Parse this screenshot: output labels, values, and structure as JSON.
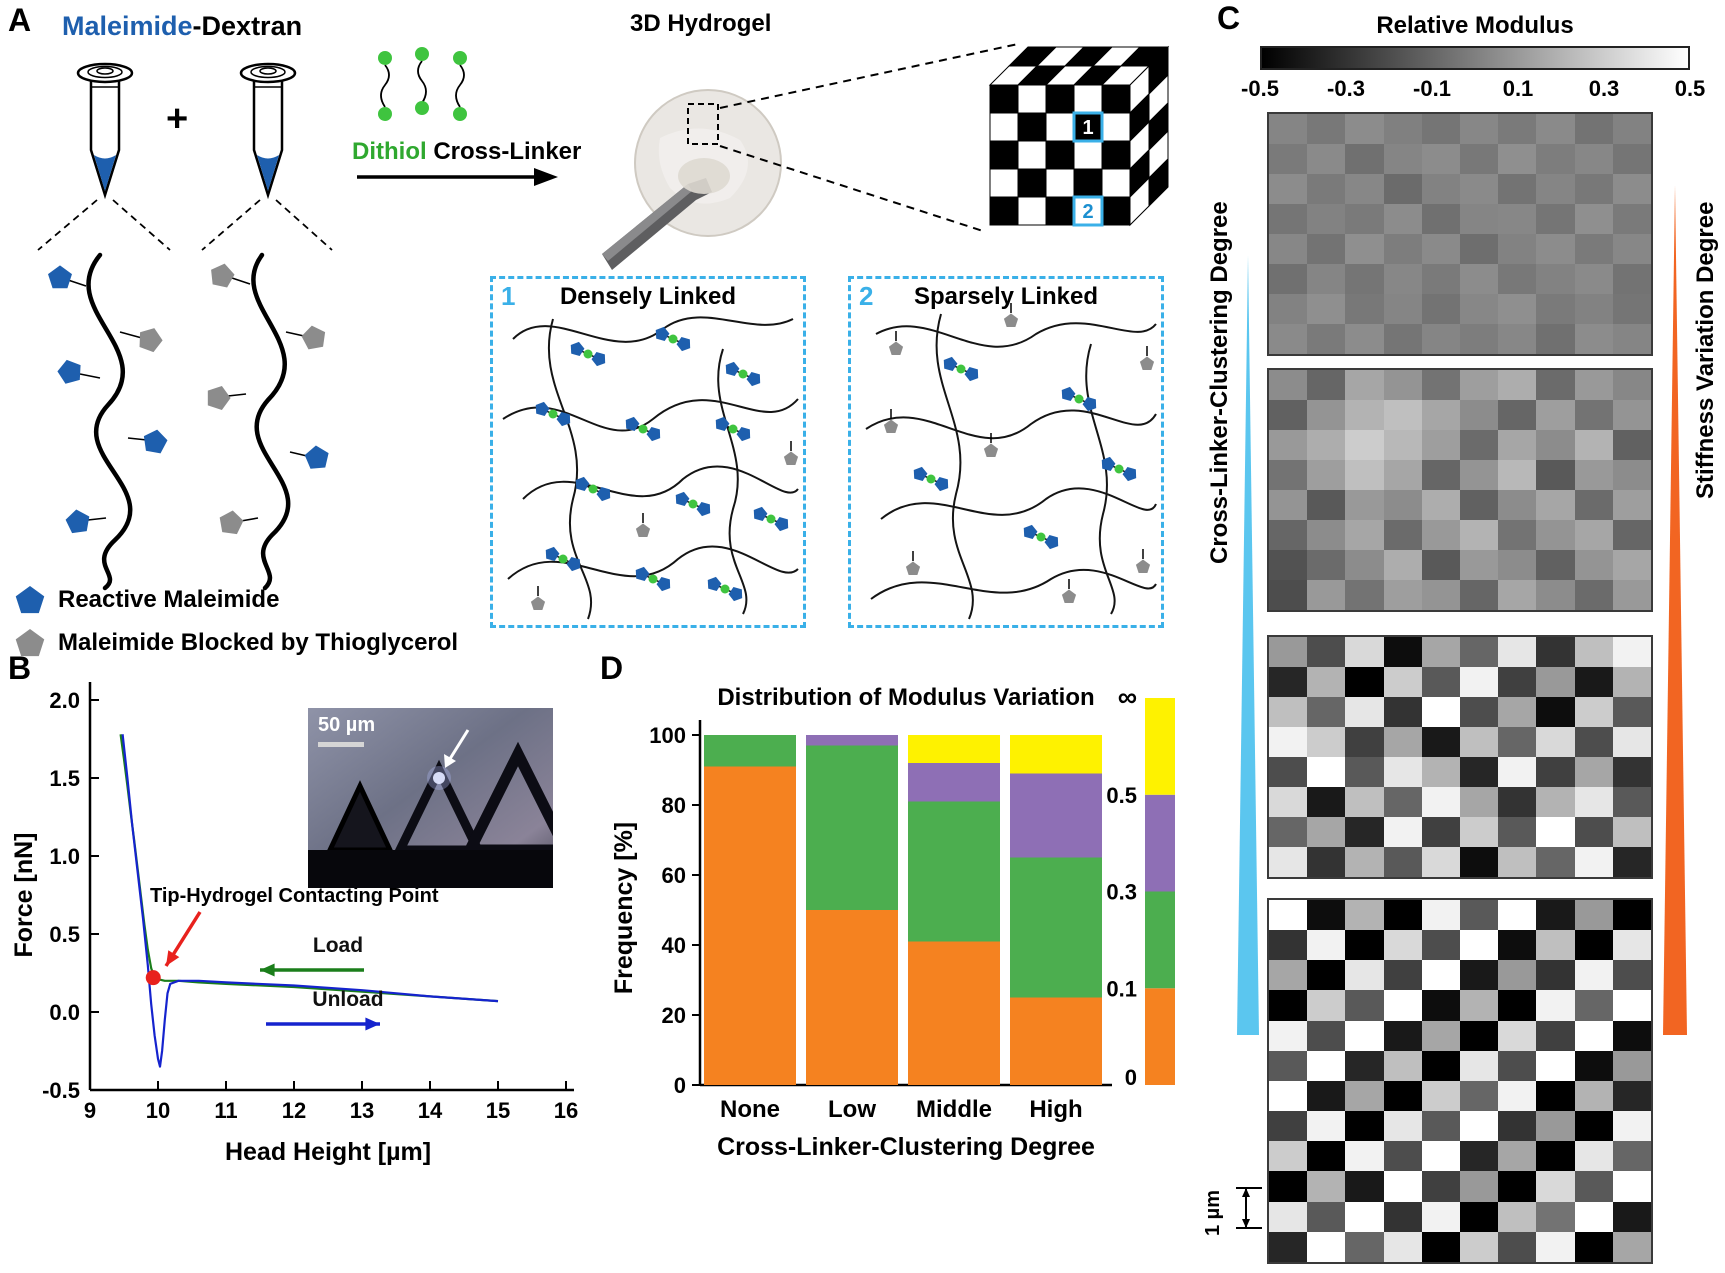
{
  "labels": {
    "a": "A",
    "b": "B",
    "c": "C",
    "d": "D"
  },
  "panel_a": {
    "title_blue": "Maleimide",
    "title_rest": "-Dextran",
    "plus": "+",
    "linker_green": "Dithiol",
    "linker_rest": " Cross-Linker",
    "hydrogel_label": "3D Hydrogel",
    "region1": {
      "number": "1",
      "title": "Densely Linked"
    },
    "region2": {
      "number": "2",
      "title": "Sparsely Linked"
    },
    "legend": [
      {
        "label": "Reactive Maleimide",
        "color": "#1E5FAE"
      },
      {
        "label": "Maleimide Blocked by Thioglycerol",
        "color": "#8C8C8C"
      }
    ],
    "accent_blue": "#3AB0E8",
    "green": "#3FC43F"
  },
  "panel_b": {
    "inset_scale": "50 µm"
  },
  "panel_c": {
    "colorbar_title": "Relative Modulus",
    "colorbar_ticks": [
      "-0.5",
      "-0.3",
      "-0.1",
      "0.1",
      "0.3",
      "0.5"
    ],
    "left_label": "Cross-Linker-Clustering Degree",
    "right_label": "Stiffness Variation Degree",
    "scale_label": "1 µm",
    "left_wedge_color": "#5BC6EF",
    "right_wedge_color": "#F26522"
  },
  "chart_data": [
    {
      "name": "afm_force_curve",
      "type": "line",
      "xlabel": "Head Height [µm]",
      "ylabel": "Force [nN]",
      "xlim": [
        9,
        16
      ],
      "ylim": [
        -0.5,
        2.0
      ],
      "xticks": [
        "9",
        "10",
        "11",
        "12",
        "13",
        "14",
        "15",
        "16"
      ],
      "yticks": [
        "2.0",
        "1.5",
        "1.0",
        "0.5",
        "0.0",
        "-0.5"
      ],
      "series": [
        {
          "name": "Load",
          "color": "#1B7E1B",
          "x": [
            9.45,
            9.5,
            9.55,
            9.6,
            9.65,
            9.7,
            9.75,
            9.8,
            9.85,
            9.9,
            9.95,
            10.0,
            10.1,
            10.3,
            10.6,
            11.0,
            12.0,
            13.0,
            14.0,
            15.0
          ],
          "y": [
            1.78,
            1.62,
            1.45,
            1.27,
            1.1,
            0.92,
            0.74,
            0.56,
            0.4,
            0.28,
            0.22,
            0.21,
            0.2,
            0.2,
            0.19,
            0.18,
            0.16,
            0.13,
            0.1,
            0.07
          ]
        },
        {
          "name": "Unload",
          "color": "#1523CE",
          "x": [
            9.48,
            9.55,
            9.62,
            9.7,
            9.78,
            9.85,
            9.9,
            9.95,
            10.0,
            10.03,
            10.06,
            10.1,
            10.14,
            10.18,
            10.3,
            10.6,
            11.0,
            12.0,
            13.0,
            14.0,
            15.0
          ],
          "y": [
            1.78,
            1.5,
            1.2,
            0.9,
            0.6,
            0.3,
            0.05,
            -0.15,
            -0.3,
            -0.35,
            -0.25,
            -0.05,
            0.12,
            0.18,
            0.2,
            0.2,
            0.19,
            0.17,
            0.14,
            0.1,
            0.07
          ]
        }
      ],
      "contact_point": [
        9.93,
        0.22
      ],
      "labels": {
        "contact": "Tip-Hydrogel Contacting Point",
        "load": "Load",
        "unload": "Unload"
      }
    },
    {
      "name": "modulus_variation_distribution",
      "type": "stacked_bar",
      "title": "Distribution of Modulus Variation",
      "xlabel": "Cross-Linker-Clustering Degree",
      "ylabel": "Frequency [%]",
      "ylim": [
        0,
        100
      ],
      "yticks": [
        0,
        20,
        40,
        60,
        80,
        100
      ],
      "categories": [
        "None",
        "Low",
        "Middle",
        "High"
      ],
      "series": [
        {
          "name": "0–0.1",
          "color": "#F58220",
          "values": [
            91,
            50,
            41,
            25
          ]
        },
        {
          "name": "0.1–0.3",
          "color": "#4CAE4F",
          "values": [
            9,
            47,
            40,
            40
          ]
        },
        {
          "name": "0.3–0.5",
          "color": "#8E6FB5",
          "values": [
            0,
            3,
            11,
            24
          ]
        },
        {
          "name": "0.5–∞",
          "color": "#FEF200",
          "values": [
            0,
            0,
            8,
            11
          ]
        }
      ],
      "scale_labels": [
        "0",
        "0.1",
        "0.3",
        "0.5",
        "∞"
      ]
    },
    {
      "name": "relative_modulus_maps",
      "type": "heatmap",
      "title": "Relative Modulus",
      "value_range": [
        -0.5,
        0.5
      ],
      "maps": [
        [
          [
            0.02,
            -0.03,
            0.05,
            0.0,
            -0.04,
            0.03,
            -0.02,
            0.04,
            -0.05,
            0.01
          ],
          [
            -0.02,
            0.04,
            -0.06,
            0.02,
            0.05,
            -0.03,
            0.06,
            -0.01,
            0.03,
            -0.04
          ],
          [
            0.05,
            -0.02,
            0.03,
            -0.08,
            0.01,
            0.04,
            -0.05,
            0.02,
            -0.03,
            0.05
          ],
          [
            -0.04,
            0.01,
            -0.02,
            0.05,
            -0.06,
            0.02,
            0.03,
            -0.04,
            0.06,
            -0.02
          ],
          [
            0.03,
            -0.05,
            0.06,
            -0.01,
            0.04,
            -0.07,
            0.01,
            0.05,
            -0.02,
            0.03
          ],
          [
            -0.06,
            0.02,
            -0.04,
            0.03,
            -0.02,
            0.05,
            -0.03,
            0.01,
            0.04,
            -0.05
          ],
          [
            0.01,
            0.06,
            -0.03,
            0.02,
            -0.05,
            0.03,
            0.06,
            -0.02,
            0.01,
            -0.04
          ],
          [
            0.04,
            -0.02,
            0.05,
            -0.04,
            0.02,
            -0.01,
            0.03,
            -0.06,
            0.05,
            0.02
          ]
        ],
        [
          [
            0.05,
            -0.1,
            0.15,
            0.08,
            -0.05,
            0.12,
            0.18,
            -0.08,
            0.1,
            0.03
          ],
          [
            -0.12,
            0.08,
            0.2,
            0.25,
            0.15,
            0.05,
            -0.1,
            0.12,
            -0.05,
            0.08
          ],
          [
            0.1,
            0.18,
            0.3,
            0.22,
            0.12,
            -0.08,
            0.15,
            0.05,
            0.2,
            -0.12
          ],
          [
            -0.05,
            0.12,
            0.25,
            0.15,
            -0.1,
            0.08,
            0.22,
            -0.15,
            0.1,
            0.05
          ],
          [
            0.08,
            -0.15,
            0.1,
            0.05,
            0.18,
            -0.12,
            0.05,
            0.15,
            -0.08,
            0.12
          ],
          [
            -0.1,
            0.05,
            0.15,
            -0.08,
            0.1,
            0.2,
            -0.05,
            0.08,
            0.15,
            -0.1
          ],
          [
            -0.18,
            -0.08,
            0.05,
            0.18,
            -0.15,
            0.1,
            0.05,
            -0.12,
            0.08,
            0.15
          ],
          [
            -0.2,
            0.1,
            -0.05,
            0.12,
            0.08,
            -0.1,
            0.15,
            0.05,
            -0.08,
            0.1
          ]
        ],
        [
          [
            0.1,
            -0.2,
            0.35,
            -0.45,
            0.15,
            -0.1,
            0.4,
            -0.3,
            0.25,
            0.45
          ],
          [
            -0.35,
            0.2,
            -0.5,
            0.3,
            -0.15,
            0.45,
            -0.25,
            0.1,
            -0.4,
            0.2
          ],
          [
            0.25,
            -0.1,
            0.4,
            -0.3,
            0.5,
            -0.2,
            0.15,
            -0.45,
            0.3,
            -0.15
          ],
          [
            0.45,
            0.3,
            -0.25,
            0.15,
            -0.4,
            0.25,
            -0.1,
            0.35,
            -0.2,
            0.4
          ],
          [
            -0.2,
            0.5,
            -0.15,
            0.4,
            0.2,
            -0.35,
            0.45,
            -0.25,
            0.15,
            -0.3
          ],
          [
            0.35,
            -0.4,
            0.25,
            -0.1,
            0.45,
            0.15,
            -0.3,
            0.2,
            0.4,
            -0.15
          ],
          [
            -0.1,
            0.15,
            -0.35,
            0.45,
            -0.25,
            0.3,
            -0.15,
            0.5,
            -0.2,
            0.25
          ],
          [
            0.4,
            -0.3,
            0.2,
            -0.15,
            0.35,
            -0.45,
            0.25,
            -0.1,
            0.45,
            -0.35
          ]
        ],
        [
          [
            0.5,
            -0.45,
            0.2,
            -0.5,
            0.45,
            -0.15,
            0.5,
            -0.4,
            0.1,
            -0.5
          ],
          [
            -0.3,
            0.45,
            -0.5,
            0.35,
            -0.2,
            0.5,
            -0.45,
            0.25,
            -0.5,
            0.4
          ],
          [
            0.15,
            -0.5,
            0.4,
            -0.25,
            0.5,
            -0.4,
            0.1,
            -0.3,
            0.45,
            -0.2
          ],
          [
            -0.5,
            0.3,
            -0.15,
            0.5,
            -0.45,
            0.2,
            -0.5,
            0.45,
            -0.1,
            0.5
          ],
          [
            0.45,
            -0.2,
            0.5,
            -0.4,
            0.15,
            -0.5,
            0.35,
            -0.25,
            0.5,
            -0.45
          ],
          [
            -0.15,
            0.5,
            -0.35,
            0.25,
            -0.5,
            0.4,
            -0.2,
            0.5,
            -0.45,
            0.1
          ],
          [
            0.5,
            -0.4,
            0.15,
            -0.5,
            0.3,
            -0.1,
            0.45,
            -0.5,
            0.2,
            -0.35
          ],
          [
            -0.25,
            0.45,
            -0.5,
            0.4,
            -0.15,
            0.5,
            -0.3,
            0.1,
            -0.5,
            0.45
          ],
          [
            0.3,
            -0.5,
            0.45,
            -0.2,
            0.5,
            -0.35,
            0.15,
            -0.5,
            0.4,
            -0.1
          ],
          [
            -0.5,
            0.2,
            -0.4,
            0.5,
            -0.25,
            0.1,
            -0.5,
            0.35,
            -0.15,
            0.5
          ],
          [
            0.4,
            -0.15,
            0.5,
            -0.3,
            0.45,
            -0.5,
            0.25,
            -0.05,
            0.5,
            -0.4
          ],
          [
            -0.35,
            0.5,
            -0.1,
            0.4,
            -0.5,
            0.3,
            -0.2,
            0.45,
            -0.5,
            0.15
          ]
        ]
      ]
    }
  ]
}
